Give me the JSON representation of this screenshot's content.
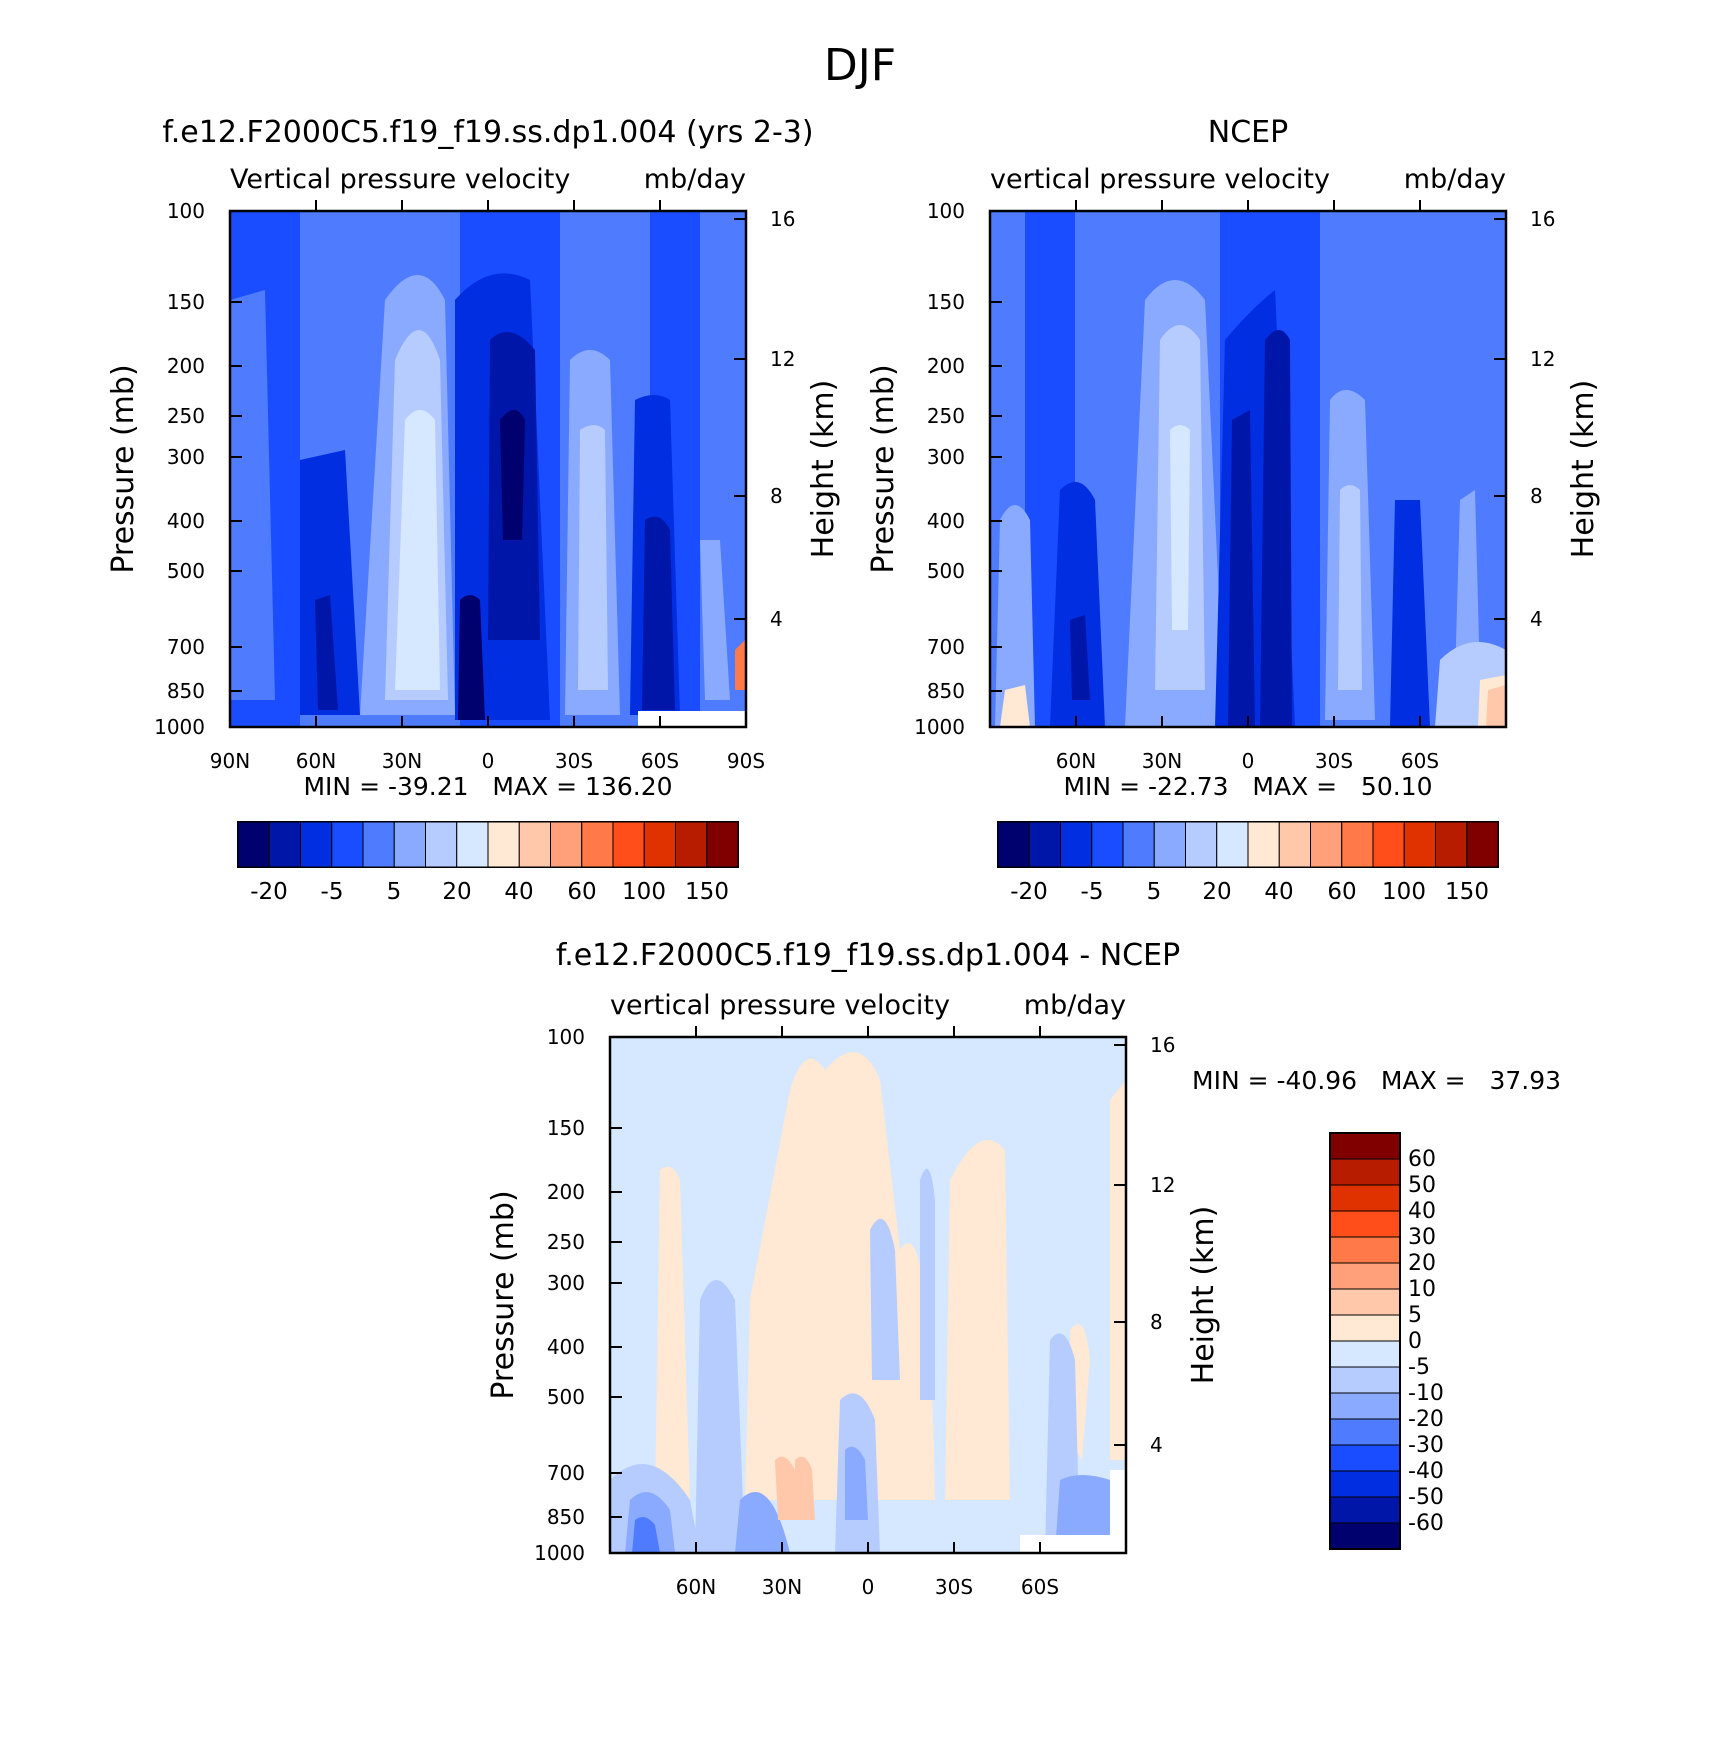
{
  "page_title": "DJF",
  "chart_data": [
    {
      "type": "heatmap",
      "title": "f.e12.F2000C5.f19_f19.ss.dp1.004 (yrs 2-3)",
      "subtitle_left": "Vertical pressure velocity",
      "subtitle_right": "mb/day",
      "ylabel": "Pressure (mb)",
      "ylabel_right": "Height (km)",
      "x_ticklabels": [
        "90N",
        "60N",
        "30N",
        "0",
        "30S",
        "60S",
        "90S"
      ],
      "y_ticklabels": [
        "100",
        "150",
        "200",
        "250",
        "300",
        "400",
        "500",
        "700",
        "850",
        "1000"
      ],
      "y_right_ticklabels": [
        "16",
        "12",
        "8",
        "4"
      ],
      "stats": "MIN = -39.21   MAX = 136.20",
      "min": -39.21,
      "max": 136.2,
      "colorbar_orientation": "horizontal",
      "colorbar_ticklabels": [
        "-20",
        "-5",
        "5",
        "20",
        "40",
        "60",
        "100",
        "150"
      ]
    },
    {
      "type": "heatmap",
      "title": "NCEP",
      "subtitle_left": "vertical pressure velocity",
      "subtitle_right": "mb/day",
      "ylabel": "Pressure (mb)",
      "ylabel_right": "Height (km)",
      "x_ticklabels": [
        "60N",
        "30N",
        "0",
        "30S",
        "60S"
      ],
      "y_ticklabels": [
        "100",
        "150",
        "200",
        "250",
        "300",
        "400",
        "500",
        "700",
        "850",
        "1000"
      ],
      "y_right_ticklabels": [
        "16",
        "12",
        "8",
        "4"
      ],
      "stats": "MIN = -22.73   MAX =   50.10",
      "min": -22.73,
      "max": 50.1,
      "colorbar_orientation": "horizontal",
      "colorbar_ticklabels": [
        "-20",
        "-5",
        "5",
        "20",
        "40",
        "60",
        "100",
        "150"
      ]
    },
    {
      "type": "heatmap",
      "title": "f.e12.F2000C5.f19_f19.ss.dp1.004 - NCEP",
      "subtitle_left": "vertical pressure velocity",
      "subtitle_right": "mb/day",
      "ylabel": "Pressure (mb)",
      "ylabel_right": "Height (km)",
      "x_ticklabels": [
        "60N",
        "30N",
        "0",
        "30S",
        "60S"
      ],
      "y_ticklabels": [
        "100",
        "150",
        "200",
        "250",
        "300",
        "400",
        "500",
        "700",
        "850",
        "1000"
      ],
      "y_right_ticklabels": [
        "16",
        "12",
        "8",
        "4"
      ],
      "stats": "MIN = -40.96   MAX =   37.93",
      "min": -40.96,
      "max": 37.93,
      "colorbar_orientation": "vertical",
      "colorbar_ticklabels": [
        "60",
        "50",
        "40",
        "30",
        "20",
        "10",
        "5",
        "0",
        "-5",
        "-10",
        "-20",
        "-30",
        "-40",
        "-50",
        "-60"
      ]
    }
  ],
  "colors": {
    "main_scale": [
      "#00006e",
      "#0016a8",
      "#002ee0",
      "#1a4dff",
      "#4f7bff",
      "#8aaaff",
      "#b6ccff",
      "#d6e8ff",
      "#ffe8d4",
      "#ffc8aa",
      "#ffa07a",
      "#ff7a48",
      "#ff4e1a",
      "#e03200",
      "#b81c00",
      "#800000"
    ],
    "diff_scale": [
      "#800000",
      "#b81c00",
      "#e03200",
      "#ff4e1a",
      "#ff7a48",
      "#ffa07a",
      "#ffc8aa",
      "#ffe8d4",
      "#d6e8ff",
      "#b6ccff",
      "#8aaaff",
      "#4f7bff",
      "#1a4dff",
      "#002ee0",
      "#0016a8",
      "#00006e"
    ]
  }
}
